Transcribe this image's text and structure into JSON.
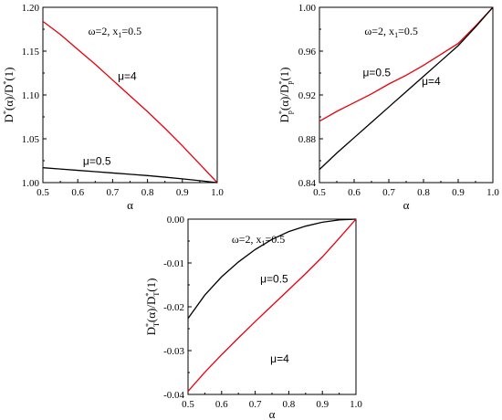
{
  "chart_data": [
    {
      "type": "line",
      "panel": "top-left",
      "annotation": {
        "omega": "ω=2, x",
        "sub": "1",
        "rest": "=0.5"
      },
      "ylabel": {
        "a": "D",
        "sup1": "*",
        "b": "(α)/D",
        "sup2": "*",
        "c": "(1)"
      },
      "xlabel": "α",
      "xlim": [
        0.5,
        1.0
      ],
      "ylim": [
        1.0,
        1.2
      ],
      "xticks": [
        "0.5",
        "0.6",
        "0.7",
        "0.8",
        "0.9",
        "1.0"
      ],
      "yticks": [
        "1.00",
        "1.05",
        "1.10",
        "1.15",
        "1.20"
      ],
      "series": [
        {
          "name": "μ=4",
          "color": "#e8000b",
          "x": [
            0.5,
            0.55,
            0.6,
            0.65,
            0.7,
            0.75,
            0.8,
            0.85,
            0.9,
            0.95,
            1.0
          ],
          "y": [
            1.184,
            1.169,
            1.152,
            1.135,
            1.117,
            1.099,
            1.081,
            1.062,
            1.042,
            1.021,
            1.0
          ]
        },
        {
          "name": "μ=0.5",
          "color": "#000000",
          "x": [
            0.5,
            0.55,
            0.6,
            0.65,
            0.7,
            0.75,
            0.8,
            0.85,
            0.9,
            0.95,
            1.0
          ],
          "y": [
            1.017,
            1.0155,
            1.014,
            1.0125,
            1.011,
            1.0095,
            1.008,
            1.0062,
            1.0043,
            1.0022,
            1.0
          ]
        }
      ]
    },
    {
      "type": "line",
      "panel": "top-right",
      "annotation": {
        "omega": "ω=2, x",
        "sub": "1",
        "rest": "=0.5"
      },
      "ylabel": {
        "a": "D",
        "sup1": "*",
        "sub1": "p",
        "b": "(α)/D",
        "sup2": "*",
        "sub2": "p",
        "c": "(1)"
      },
      "xlabel": "α",
      "xlim": [
        0.5,
        1.0
      ],
      "ylim": [
        0.84,
        1.0
      ],
      "xticks": [
        "0.5",
        "0.6",
        "0.7",
        "0.8",
        "0.9",
        "1.0"
      ],
      "yticks": [
        "0.84",
        "0.88",
        "0.92",
        "0.96",
        "1.00"
      ],
      "series": [
        {
          "name": "μ=0.5",
          "color": "#e8000b",
          "x": [
            0.5,
            0.55,
            0.6,
            0.65,
            0.7,
            0.75,
            0.8,
            0.85,
            0.9,
            0.95,
            1.0
          ],
          "y": [
            0.896,
            0.905,
            0.913,
            0.921,
            0.93,
            0.938,
            0.947,
            0.957,
            0.967,
            0.983,
            1.0
          ]
        },
        {
          "name": "μ=4",
          "color": "#000000",
          "x": [
            0.5,
            0.55,
            0.6,
            0.65,
            0.7,
            0.75,
            0.8,
            0.85,
            0.9,
            0.95,
            1.0
          ],
          "y": [
            0.852,
            0.867,
            0.881,
            0.895,
            0.909,
            0.923,
            0.937,
            0.951,
            0.965,
            0.982,
            1.0
          ]
        }
      ]
    },
    {
      "type": "line",
      "panel": "bottom",
      "annotation": {
        "omega": "ω=2, x",
        "sub": "1",
        "rest": "=0.5"
      },
      "ylabel": {
        "a": "D",
        "sup1": "*",
        "sub1": "T",
        "b": "(α)/D",
        "sup2": "*",
        "sub2": "T",
        "c": "(1)"
      },
      "xlabel": "α",
      "xlim": [
        0.5,
        1.0
      ],
      "ylim": [
        -0.045,
        0.0
      ],
      "xticks": [
        "0.5",
        "0.6",
        "0.7",
        "0.8",
        "0.9",
        "1.0"
      ],
      "yticks": [
        "-0.04",
        "-0.03",
        "-0.02",
        "-0.01",
        "0.00"
      ],
      "series": [
        {
          "name": "μ=0.5",
          "color": "#000000",
          "x": [
            0.5,
            0.55,
            0.6,
            0.65,
            0.7,
            0.75,
            0.8,
            0.85,
            0.9,
            0.95,
            1.0
          ],
          "y": [
            -0.0255,
            -0.0195,
            -0.0148,
            -0.011,
            -0.0078,
            -0.0052,
            -0.0032,
            -0.0018,
            -0.0008,
            -0.0002,
            0.0
          ]
        },
        {
          "name": "μ=4",
          "color": "#e8000b",
          "x": [
            0.5,
            0.55,
            0.6,
            0.65,
            0.7,
            0.75,
            0.8,
            0.85,
            0.9,
            0.95,
            1.0
          ],
          "y": [
            -0.0442,
            -0.0393,
            -0.0348,
            -0.0305,
            -0.0263,
            -0.0222,
            -0.0181,
            -0.014,
            -0.0097,
            -0.0049,
            0.0
          ]
        }
      ]
    }
  ]
}
